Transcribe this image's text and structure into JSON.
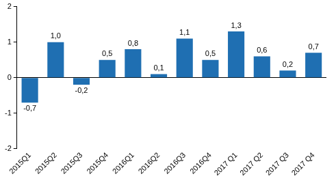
{
  "chart_data": {
    "type": "bar",
    "categories": [
      "2015Q1",
      "2015Q2",
      "2015Q3",
      "2015Q4",
      "2016Q1",
      "2016Q2",
      "2016Q3",
      "2016Q4",
      "2017 Q1",
      "2017 Q2",
      "2017 Q3",
      "2017 Q4"
    ],
    "values": [
      -0.7,
      1.0,
      -0.2,
      0.5,
      0.8,
      0.1,
      1.1,
      0.5,
      1.3,
      0.6,
      0.2,
      0.7
    ],
    "value_labels": [
      "-0,7",
      "1,0",
      "-0,2",
      "0,5",
      "0,8",
      "0,1",
      "1,1",
      "0,5",
      "1,3",
      "0,6",
      "0,2",
      "0,7"
    ],
    "color": "#1f6fb2",
    "ylim": [
      -2,
      2
    ],
    "yticks": [
      -2,
      -1,
      0,
      1,
      2
    ],
    "grid": false,
    "data_labels": true
  }
}
